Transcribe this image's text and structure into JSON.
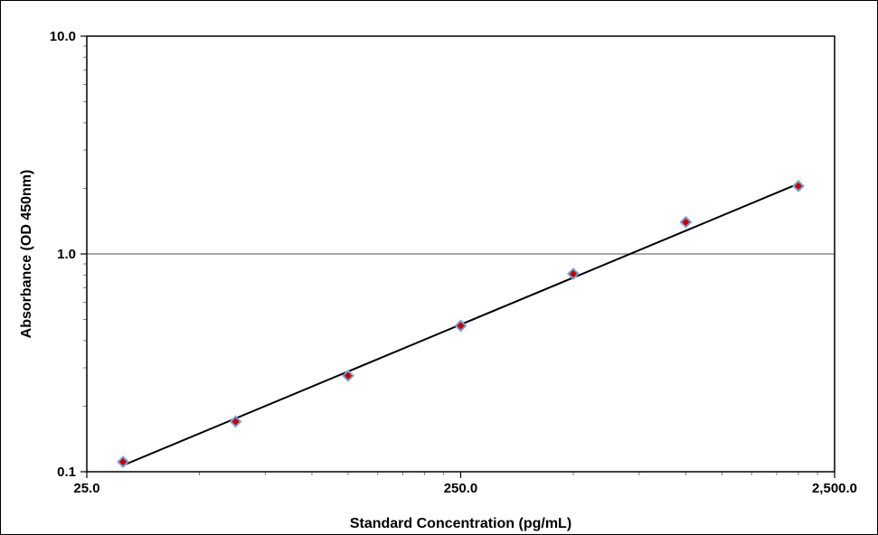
{
  "chart_data": {
    "type": "scatter",
    "title": "",
    "xlabel": "Standard Concentration (pg/mL)",
    "ylabel": "Absorbance (OD 450nm)",
    "x_scale": "log",
    "y_scale": "log",
    "xlim": [
      25,
      2500
    ],
    "ylim": [
      0.1,
      10
    ],
    "x_ticks": [
      25,
      250,
      2500
    ],
    "x_tick_labels": [
      "25.0",
      "250.0",
      "2,500.0"
    ],
    "y_ticks": [
      0.1,
      1,
      10
    ],
    "y_tick_labels": [
      "0.1",
      "1.0",
      "10.0"
    ],
    "grid": "horizontal major",
    "legend": "none",
    "series": [
      {
        "x": [
          31.25,
          62.5,
          125,
          250,
          500,
          1000,
          2000
        ],
        "y": [
          0.111,
          0.17,
          0.276,
          0.468,
          0.81,
          1.4,
          2.05
        ],
        "marker": "diamond",
        "marker_fill": "#c00000",
        "marker_edge": "#7f9fd0"
      }
    ],
    "trendline": {
      "type": "power",
      "x": [
        31.25,
        2000
      ],
      "y": [
        0.107,
        2.1
      ],
      "color": "#000000"
    }
  }
}
